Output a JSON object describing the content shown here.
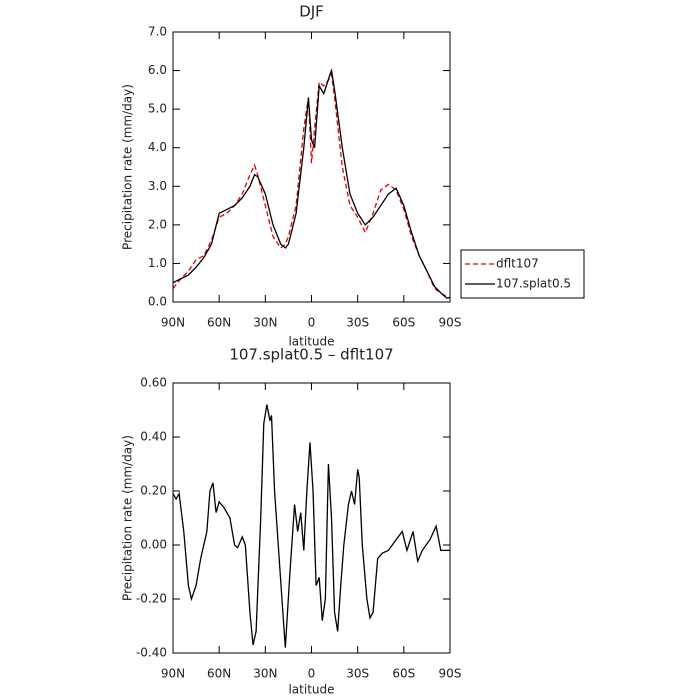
{
  "chart_data": [
    {
      "type": "line",
      "title": "DJF",
      "xlabel": "latitude",
      "ylabel": "Precipitation rate (mm/day)",
      "x": [
        90,
        85,
        80,
        75,
        70,
        65,
        60,
        55,
        50,
        45,
        40,
        37,
        35,
        30,
        25,
        20,
        17,
        15,
        10,
        5,
        2,
        0,
        -2,
        -5,
        -8,
        -12,
        -13,
        -15,
        -20,
        -25,
        -30,
        -35,
        -40,
        -45,
        -50,
        -55,
        -60,
        -65,
        -70,
        -75,
        -80,
        -85,
        -88,
        -90
      ],
      "series": [
        {
          "name": "dflt107",
          "color": "#e00000",
          "line_style": "dashed",
          "values": [
            0.35,
            0.6,
            0.8,
            1.1,
            1.2,
            1.6,
            2.2,
            2.3,
            2.5,
            2.8,
            3.3,
            3.55,
            3.3,
            2.5,
            1.7,
            1.4,
            1.5,
            1.7,
            2.5,
            4.5,
            5.3,
            3.6,
            4.5,
            5.7,
            5.6,
            5.8,
            5.9,
            5.3,
            3.5,
            2.5,
            2.2,
            1.8,
            2.3,
            2.9,
            3.05,
            2.9,
            2.4,
            1.7,
            1.2,
            0.8,
            0.35,
            0.2,
            0.15,
            0.1
          ]
        },
        {
          "name": "107.splat0.5",
          "color": "#000000",
          "line_style": "solid",
          "values": [
            0.5,
            0.6,
            0.7,
            0.9,
            1.15,
            1.5,
            2.3,
            2.4,
            2.5,
            2.7,
            3.0,
            3.3,
            3.25,
            2.8,
            2.0,
            1.5,
            1.4,
            1.5,
            2.3,
            4.0,
            5.3,
            4.2,
            4.0,
            5.6,
            5.4,
            5.9,
            6.0,
            5.5,
            4.0,
            2.8,
            2.3,
            2.0,
            2.2,
            2.5,
            2.8,
            2.95,
            2.5,
            1.8,
            1.2,
            0.8,
            0.4,
            0.2,
            0.1,
            0.12
          ]
        }
      ],
      "xlim": [
        90,
        -90
      ],
      "xticks": [
        {
          "value": 90,
          "label": "90N"
        },
        {
          "value": 60,
          "label": "60N"
        },
        {
          "value": 30,
          "label": "30N"
        },
        0,
        {
          "value": -30,
          "label": "30S"
        },
        {
          "value": -60,
          "label": "60S"
        },
        {
          "value": -90,
          "label": "90S"
        }
      ],
      "ylim": [
        0,
        7
      ],
      "yticks": [
        {
          "value": 0,
          "label": "0.0"
        },
        {
          "value": 1,
          "label": "1.0"
        },
        {
          "value": 2,
          "label": "2.0"
        },
        {
          "value": 3,
          "label": "3.0"
        },
        {
          "value": 4,
          "label": "4.0"
        },
        {
          "value": 5,
          "label": "5.0"
        },
        {
          "value": 6,
          "label": "6.0"
        },
        {
          "value": 7,
          "label": "7.0"
        }
      ],
      "legend": "outside-right-bottom"
    },
    {
      "type": "line",
      "title": "107.splat0.5 – dflt107",
      "xlabel": "latitude",
      "ylabel": "Precipitation rate (mm/day)",
      "x": [
        90,
        88,
        86,
        83,
        80,
        78,
        75,
        72,
        68,
        66,
        64,
        62,
        60,
        57,
        53,
        50,
        48,
        45,
        43,
        40,
        38,
        36,
        33,
        31,
        29,
        27,
        26,
        24,
        21,
        18,
        17,
        14,
        11,
        9,
        7,
        5,
        3,
        1,
        -1,
        -3,
        -5,
        -7,
        -9,
        -11,
        -13,
        -15,
        -17,
        -19,
        -21,
        -24,
        -26,
        -28,
        -30,
        -31,
        -33,
        -36,
        -38,
        -40,
        -43,
        -46,
        -50,
        -55,
        -59,
        -62,
        -66,
        -69,
        -72,
        -77,
        -81,
        -84,
        -90
      ],
      "series": [
        {
          "name": "107.splat0.5 – dflt107",
          "color": "#000000",
          "line_style": "solid",
          "values": [
            0.19,
            0.17,
            0.19,
            0.05,
            -0.15,
            -0.2,
            -0.15,
            -0.05,
            0.05,
            0.2,
            0.23,
            0.12,
            0.16,
            0.14,
            0.1,
            0.0,
            -0.01,
            0.03,
            0.0,
            -0.25,
            -0.37,
            -0.32,
            0.1,
            0.45,
            0.52,
            0.46,
            0.48,
            0.2,
            -0.05,
            -0.3,
            -0.38,
            -0.1,
            0.15,
            0.05,
            0.12,
            -0.02,
            0.2,
            0.38,
            0.2,
            -0.15,
            -0.12,
            -0.28,
            -0.2,
            0.3,
            0.1,
            -0.25,
            -0.32,
            -0.15,
            0.0,
            0.15,
            0.2,
            0.15,
            0.28,
            0.25,
            0.0,
            -0.2,
            -0.27,
            -0.25,
            -0.05,
            -0.03,
            -0.02,
            0.02,
            0.05,
            -0.02,
            0.05,
            -0.06,
            -0.02,
            0.02,
            0.07,
            -0.02,
            -0.02
          ]
        }
      ],
      "xlim": [
        90,
        -90
      ],
      "xticks": [
        {
          "value": 90,
          "label": "90N"
        },
        {
          "value": 60,
          "label": "60N"
        },
        {
          "value": 30,
          "label": "30N"
        },
        0,
        {
          "value": -30,
          "label": "30S"
        },
        {
          "value": -60,
          "label": "60S"
        },
        {
          "value": -90,
          "label": "90S"
        }
      ],
      "ylim": [
        -0.4,
        0.6
      ],
      "yticks": [
        {
          "value": -0.4,
          "label": "-0.40"
        },
        {
          "value": -0.2,
          "label": "-0.20"
        },
        {
          "value": 0,
          "label": "0.00"
        },
        {
          "value": 0.2,
          "label": "0.20"
        },
        {
          "value": 0.4,
          "label": "0.40"
        },
        {
          "value": 0.6,
          "label": "0.60"
        }
      ]
    }
  ]
}
